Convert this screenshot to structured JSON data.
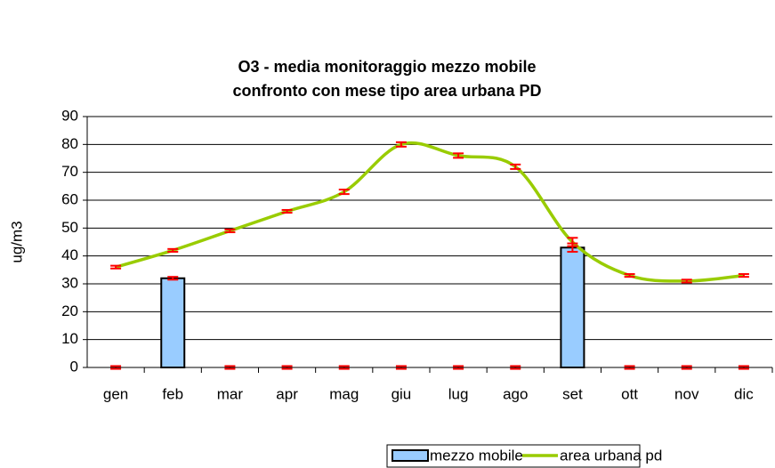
{
  "chart_data": {
    "type": "bar",
    "title": "O3 - media monitoraggio mezzo mobile",
    "subtitle": "confronto con mese tipo area urbana PD",
    "y_label": "ug/m3",
    "categories": [
      "gen",
      "feb",
      "mar",
      "apr",
      "mag",
      "giu",
      "lug",
      "ago",
      "set",
      "ott",
      "nov",
      "dic"
    ],
    "series": [
      {
        "name": "mezzo mobile",
        "type": "bar",
        "color": "#99ccff",
        "values": [
          0,
          32,
          0,
          0,
          0,
          0,
          0,
          0,
          43,
          0,
          0,
          0
        ],
        "errors": [
          0.5,
          0.5,
          0.5,
          0.5,
          0.5,
          0.5,
          0.5,
          0.5,
          1.5,
          0.5,
          0.5,
          0.5
        ]
      },
      {
        "name": "area urbana pd",
        "type": "line",
        "color": "#99cc00",
        "values": [
          36,
          42,
          49,
          56,
          63,
          80,
          76,
          72,
          45,
          33,
          31,
          33
        ],
        "errors": [
          0.5,
          0.5,
          0.5,
          0.5,
          0.8,
          0.8,
          0.8,
          0.8,
          1.5,
          0.5,
          0.5,
          0.5
        ]
      }
    ],
    "error_color": "#ff0000",
    "ylim": [
      0,
      90
    ],
    "yticks": [
      0,
      10,
      20,
      30,
      40,
      50,
      60,
      70,
      80,
      90
    ],
    "grid": true,
    "legend": "bottom"
  }
}
